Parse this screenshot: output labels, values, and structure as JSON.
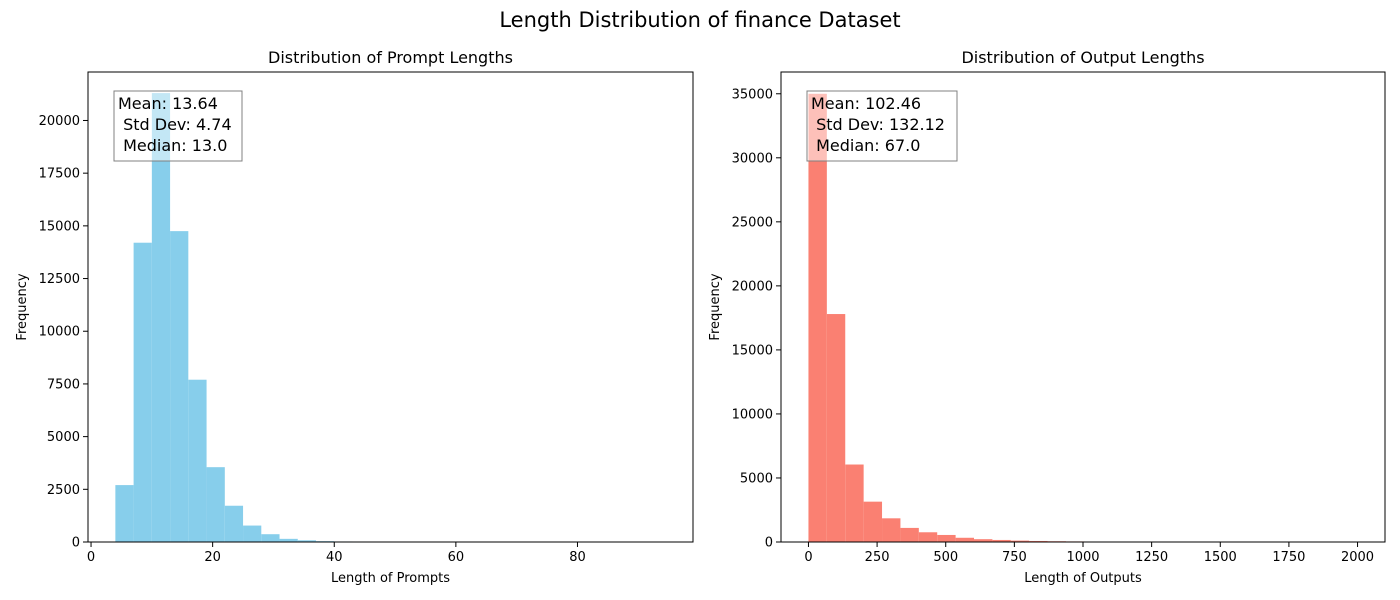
{
  "figure": {
    "title": "Length Distribution of finance Dataset"
  },
  "chart_data": [
    {
      "type": "bar",
      "title": "Distribution of Prompt Lengths",
      "xlabel": "Length of Prompts",
      "ylabel": "Frequency",
      "color": "#87ceeb",
      "xlim": [
        -0.5,
        99
      ],
      "ylim": [
        0,
        22300
      ],
      "x_ticks": [
        0,
        20,
        40,
        60,
        80
      ],
      "y_ticks": [
        0,
        2500,
        5000,
        7500,
        10000,
        12500,
        15000,
        17500,
        20000
      ],
      "bin_edges": [
        4,
        7,
        10,
        13,
        16,
        19,
        22,
        25,
        28,
        31,
        34,
        37,
        40,
        43,
        46
      ],
      "values": [
        2700,
        14200,
        21300,
        14750,
        7700,
        3550,
        1720,
        780,
        370,
        150,
        80,
        40,
        25,
        15
      ],
      "stats_lines": [
        "Mean: 13.64",
        " Std Dev: 4.74",
        " Median: 13.0"
      ]
    },
    {
      "type": "bar",
      "title": "Distribution of Output Lengths",
      "xlabel": "Length of Outputs",
      "ylabel": "Frequency",
      "color": "#fa8072",
      "xlim": [
        -100,
        2100
      ],
      "ylim": [
        0,
        36700
      ],
      "x_ticks": [
        0,
        250,
        500,
        750,
        1000,
        1250,
        1500,
        1750,
        2000
      ],
      "y_ticks": [
        0,
        5000,
        10000,
        15000,
        20000,
        25000,
        30000,
        35000
      ],
      "bin_edges": [
        0,
        67,
        134,
        201,
        268,
        335,
        402,
        469,
        536,
        603,
        670,
        737,
        804,
        871,
        938,
        1005,
        1072,
        1139,
        1206
      ],
      "values": [
        35000,
        17800,
        6050,
        3150,
        1850,
        1100,
        760,
        550,
        330,
        220,
        160,
        110,
        80,
        60,
        45,
        35,
        25,
        15
      ],
      "stats_lines": [
        "Mean: 102.46",
        " Std Dev: 132.12",
        " Median: 67.0"
      ]
    }
  ]
}
